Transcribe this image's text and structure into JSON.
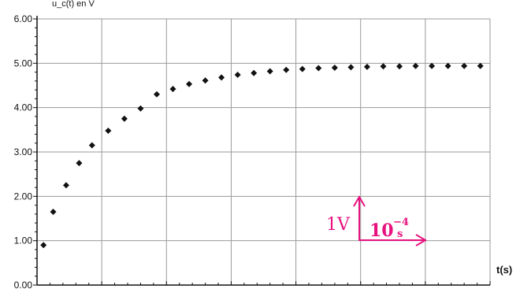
{
  "chart_data": {
    "type": "scatter",
    "title": "",
    "ylabel_partial": "u_c(t) en V",
    "xlabel": "t(s)",
    "ylim": [
      0,
      6
    ],
    "y_ticks": [
      "0.00",
      "1.00",
      "2.00",
      "3.00",
      "4.00",
      "5.00",
      "6.00"
    ],
    "grid": true,
    "x_units": "divisions (1 division = 10^-4 s)",
    "x_range": [
      0,
      7
    ],
    "series": [
      {
        "name": "",
        "marker": "diamond",
        "color": "#111111",
        "points": [
          [
            0.1,
            0.9
          ],
          [
            0.25,
            1.65
          ],
          [
            0.45,
            2.25
          ],
          [
            0.65,
            2.75
          ],
          [
            0.85,
            3.15
          ],
          [
            1.1,
            3.48
          ],
          [
            1.35,
            3.75
          ],
          [
            1.6,
            3.98
          ],
          [
            1.85,
            4.3
          ],
          [
            2.1,
            4.42
          ],
          [
            2.35,
            4.53
          ],
          [
            2.6,
            4.61
          ],
          [
            2.85,
            4.68
          ],
          [
            3.1,
            4.74
          ],
          [
            3.35,
            4.78
          ],
          [
            3.6,
            4.82
          ],
          [
            3.85,
            4.85
          ],
          [
            4.1,
            4.87
          ],
          [
            4.35,
            4.89
          ],
          [
            4.6,
            4.9
          ],
          [
            4.85,
            4.91
          ],
          [
            5.1,
            4.92
          ],
          [
            5.35,
            4.93
          ],
          [
            5.6,
            4.93
          ],
          [
            5.85,
            4.94
          ],
          [
            6.1,
            4.94
          ],
          [
            6.35,
            4.94
          ],
          [
            6.6,
            4.94
          ],
          [
            6.85,
            4.94
          ]
        ]
      }
    ],
    "annotation": {
      "color": "#e8117f",
      "vertical_label": "1V",
      "horizontal_base": "10",
      "horizontal_exp": "−4",
      "horizontal_unit": "s"
    }
  }
}
